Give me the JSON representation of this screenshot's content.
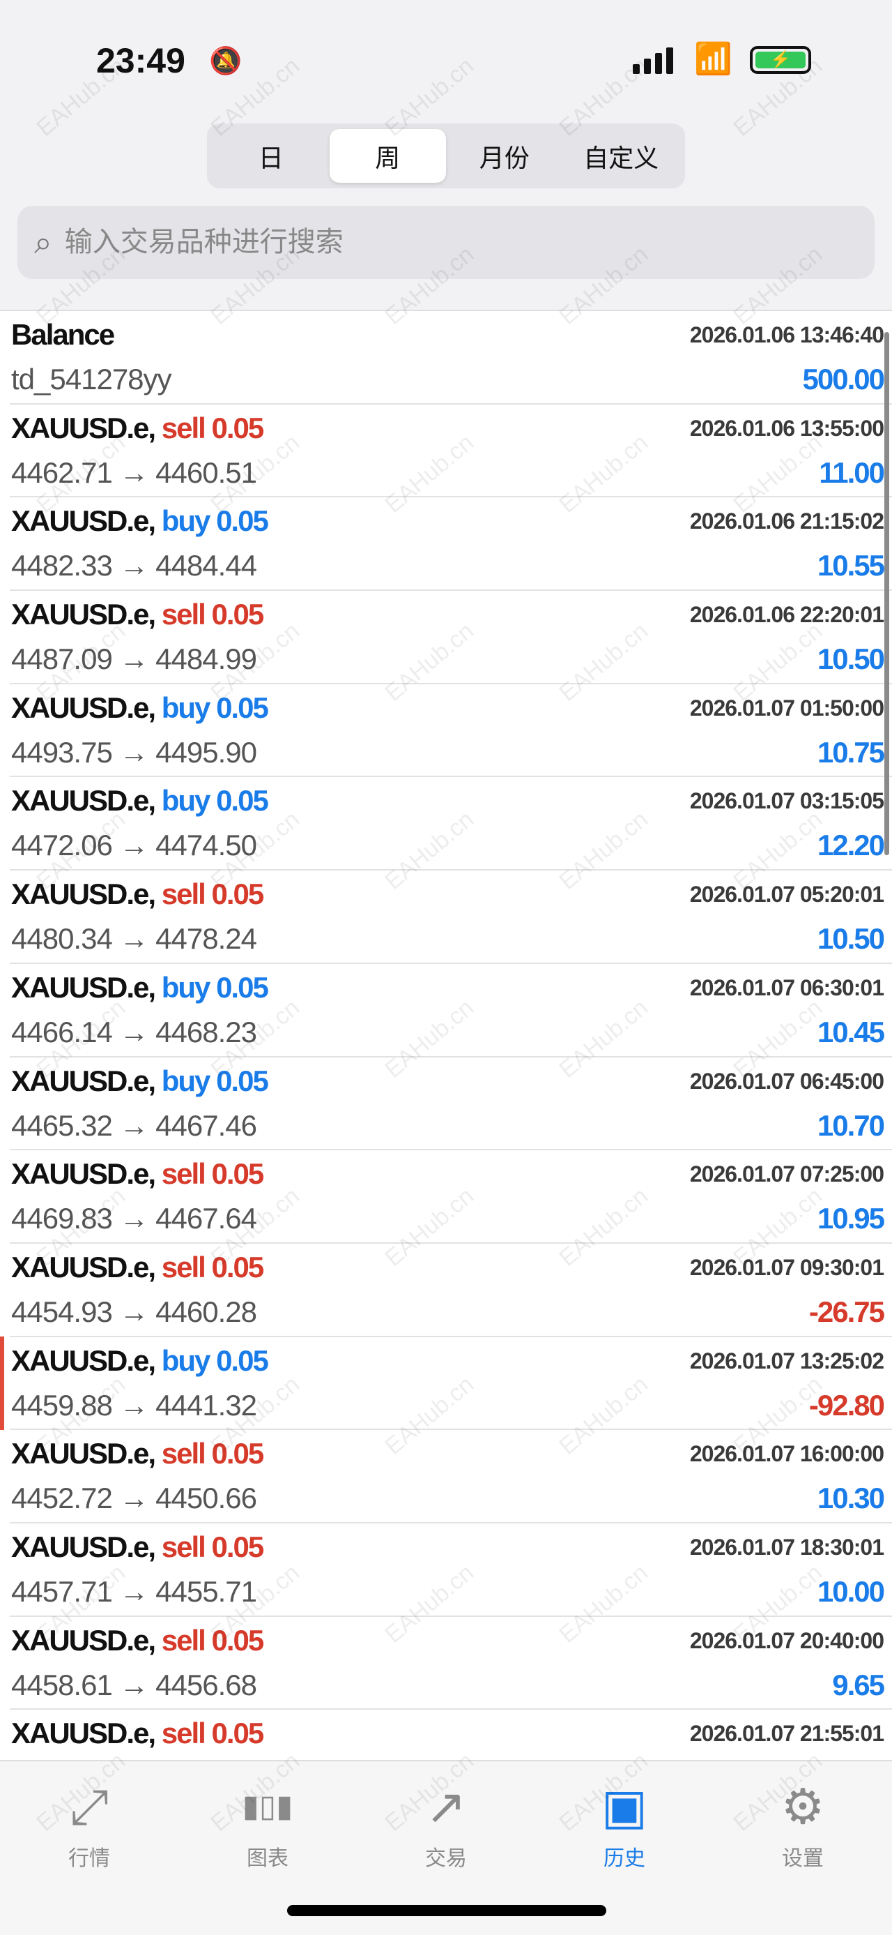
{
  "status_bar": {
    "time": "23:49"
  },
  "segments": [
    {
      "label": "日",
      "active": false
    },
    {
      "label": "周",
      "active": true
    },
    {
      "label": "月份",
      "active": false
    },
    {
      "label": "自定义",
      "active": false
    }
  ],
  "search": {
    "placeholder": "输入交易品种进行搜索",
    "value": ""
  },
  "balance": {
    "title": "Balance",
    "time": "2026.01.06 13:46:40",
    "comment": "td_541278yy",
    "amount": "500.00"
  },
  "deals": [
    {
      "symbol": "XAUUSD.e,",
      "type": "sell",
      "volume": "0.05",
      "time": "2026.01.06 13:55:00",
      "prices": "4462.71 → 4460.51",
      "profit": "11.00"
    },
    {
      "symbol": "XAUUSD.e,",
      "type": "buy",
      "volume": "0.05",
      "time": "2026.01.06 21:15:02",
      "prices": "4482.33 → 4484.44",
      "profit": "10.55"
    },
    {
      "symbol": "XAUUSD.e,",
      "type": "sell",
      "volume": "0.05",
      "time": "2026.01.06 22:20:01",
      "prices": "4487.09 → 4484.99",
      "profit": "10.50"
    },
    {
      "symbol": "XAUUSD.e,",
      "type": "buy",
      "volume": "0.05",
      "time": "2026.01.07 01:50:00",
      "prices": "4493.75 → 4495.90",
      "profit": "10.75"
    },
    {
      "symbol": "XAUUSD.e,",
      "type": "buy",
      "volume": "0.05",
      "time": "2026.01.07 03:15:05",
      "prices": "4472.06 → 4474.50",
      "profit": "12.20"
    },
    {
      "symbol": "XAUUSD.e,",
      "type": "sell",
      "volume": "0.05",
      "time": "2026.01.07 05:20:01",
      "prices": "4480.34 → 4478.24",
      "profit": "10.50"
    },
    {
      "symbol": "XAUUSD.e,",
      "type": "buy",
      "volume": "0.05",
      "time": "2026.01.07 06:30:01",
      "prices": "4466.14 → 4468.23",
      "profit": "10.45"
    },
    {
      "symbol": "XAUUSD.e,",
      "type": "buy",
      "volume": "0.05",
      "time": "2026.01.07 06:45:00",
      "prices": "4465.32 → 4467.46",
      "profit": "10.70"
    },
    {
      "symbol": "XAUUSD.e,",
      "type": "sell",
      "volume": "0.05",
      "time": "2026.01.07 07:25:00",
      "prices": "4469.83 → 4467.64",
      "profit": "10.95"
    },
    {
      "symbol": "XAUUSD.e,",
      "type": "sell",
      "volume": "0.05",
      "time": "2026.01.07 09:30:01",
      "prices": "4454.93 → 4460.28",
      "profit": "-26.75"
    },
    {
      "symbol": "XAUUSD.e,",
      "type": "buy",
      "volume": "0.05",
      "time": "2026.01.07 13:25:02",
      "prices": "4459.88 → 4441.32",
      "profit": "-92.80"
    },
    {
      "symbol": "XAUUSD.e,",
      "type": "sell",
      "volume": "0.05",
      "time": "2026.01.07 16:00:00",
      "prices": "4452.72 → 4450.66",
      "profit": "10.30"
    },
    {
      "symbol": "XAUUSD.e,",
      "type": "sell",
      "volume": "0.05",
      "time": "2026.01.07 18:30:01",
      "prices": "4457.71 → 4455.71",
      "profit": "10.00"
    },
    {
      "symbol": "XAUUSD.e,",
      "type": "sell",
      "volume": "0.05",
      "time": "2026.01.07 20:40:00",
      "prices": "4458.61 → 4456.68",
      "profit": "9.65"
    },
    {
      "symbol": "XAUUSD.e,",
      "type": "sell",
      "volume": "0.05",
      "time": "2026.01.07 21:55:01",
      "prices": "",
      "profit": ""
    }
  ],
  "tabs": [
    {
      "label": "行情",
      "icon": "quotes-arrows-icon",
      "active": false
    },
    {
      "label": "图表",
      "icon": "candlestick-chart-icon",
      "active": false
    },
    {
      "label": "交易",
      "icon": "trade-chart-icon",
      "active": false
    },
    {
      "label": "历史",
      "icon": "history-tray-icon",
      "active": true
    },
    {
      "label": "设置",
      "icon": "gear-icon",
      "active": false
    }
  ],
  "colors": {
    "accent": "#1a7ce8",
    "sell": "#d63a2a",
    "positive": "#1a7ce8",
    "negative": "#d63a2a"
  },
  "watermark": "EAHub.cn"
}
